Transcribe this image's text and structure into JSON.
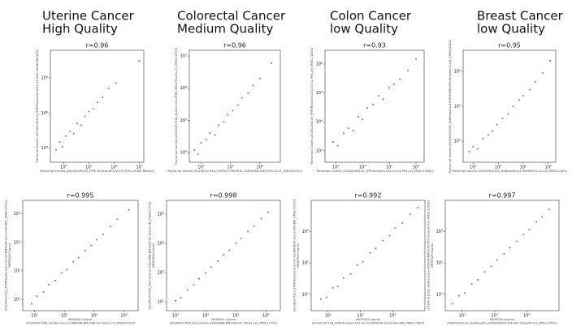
{
  "headers": [
    {
      "line1": "Uterine Cancer",
      "line2": "High Quality"
    },
    {
      "line1": "Colorectal Cancer",
      "line2": "Medium Quality"
    },
    {
      "line1": "Colon Cancer",
      "line2": "low Quality"
    },
    {
      "line1": "Breast Cancer",
      "line2": "low Quality"
    }
  ],
  "chart_data": [
    {
      "type": "scatter",
      "title": "r=0.96",
      "log_scale": true,
      "color": "#1f77b4",
      "x_label": "Transcript Counts (20240208133_FFPE-HuUterusCa-V2-S1-PH1-LH-BM_Beta10)",
      "y_label": "Transcript Counts (20240208133_FFPEHuUterusCa-V2-S1-PH1-LH-BM_Beta10)",
      "xlim": [
        3000,
        15000000
      ],
      "ylim": [
        4000,
        6000000
      ],
      "xticks": [
        {
          "value": 10000,
          "label": "10⁴"
        },
        {
          "value": 100000,
          "label": "10⁵"
        },
        {
          "value": 1000000,
          "label": "10⁶"
        },
        {
          "value": 10000000,
          "label": "10⁷"
        }
      ],
      "yticks": [
        {
          "value": 10000,
          "label": "10⁴"
        },
        {
          "value": 100000,
          "label": "10⁵"
        },
        {
          "value": 1000000,
          "label": "10⁶"
        }
      ],
      "x": [
        5000,
        7000,
        9000,
        12000,
        18000,
        25000,
        35000,
        50000,
        70000,
        100000,
        150000,
        220000,
        350000,
        600000,
        1200000,
        10000000
      ],
      "y": [
        9000,
        15000,
        11000,
        22000,
        30000,
        26000,
        50000,
        45000,
        80000,
        110000,
        130000,
        200000,
        280000,
        500000,
        700000,
        3000000
      ]
    },
    {
      "type": "scatter",
      "title": "r=0.96",
      "log_scale": true,
      "color": "#1f77b4",
      "x_label": "Transcript Counts (20240207414_HuCRC-FFPE-MG2-1282958B-MG2-PH1-V1-LT_VMSC00701)",
      "y_label": "Transcript Counts (20240207414_HuColonCa-FFPE-MG2-PH1-V1-LT_VMSC00701)",
      "xlim": [
        4000,
        5000000
      ],
      "ylim": [
        5000,
        15000000
      ],
      "xticks": [
        {
          "value": 10000,
          "label": "10⁴"
        },
        {
          "value": 100000,
          "label": "10⁵"
        },
        {
          "value": 1000000,
          "label": "10⁶"
        }
      ],
      "yticks": [
        {
          "value": 10000,
          "label": "10⁴"
        },
        {
          "value": 100000,
          "label": "10⁵"
        },
        {
          "value": 1000000,
          "label": "10⁶"
        },
        {
          "value": 10000000,
          "label": "10⁷"
        }
      ],
      "x": [
        6000,
        8000,
        10000,
        15000,
        20000,
        30000,
        40000,
        60000,
        80000,
        120000,
        180000,
        250000,
        400000,
        600000,
        1000000,
        2500000
      ],
      "y": [
        12000,
        9000,
        20000,
        25000,
        40000,
        35000,
        70000,
        90000,
        150000,
        200000,
        300000,
        500000,
        700000,
        1200000,
        2000000,
        6000000
      ]
    },
    {
      "type": "scatter",
      "title": "r=0.93",
      "log_scale": true,
      "color": "#1f77b4",
      "x_label": "Transcript Counts (20240208130_FFPEHuColon-L02-V1-S1-PH1-LH_VMSC11802)",
      "y_label": "Transcript Counts (20240208130_FFPEHuColon-L02-V1-S1-PH1-LH_VMSC11802)",
      "xlim": [
        400,
        2000000
      ],
      "ylim": [
        400,
        3000000
      ],
      "xticks": [
        {
          "value": 1000,
          "label": "10³"
        },
        {
          "value": 10000,
          "label": "10⁴"
        },
        {
          "value": 100000,
          "label": "10⁵"
        },
        {
          "value": 1000000,
          "label": "10⁶"
        }
      ],
      "yticks": [
        {
          "value": 1000,
          "label": "10³"
        },
        {
          "value": 10000,
          "label": "10⁴"
        },
        {
          "value": 100000,
          "label": "10⁵"
        },
        {
          "value": 1000000,
          "label": "10⁶"
        }
      ],
      "x": [
        800,
        1200,
        2000,
        3000,
        4500,
        7000,
        10000,
        15000,
        25000,
        40000,
        60000,
        100000,
        150000,
        250000,
        500000,
        1000000
      ],
      "y": [
        2000,
        1500,
        4000,
        6000,
        5000,
        15000,
        12000,
        30000,
        40000,
        80000,
        60000,
        150000,
        200000,
        300000,
        600000,
        1500000
      ]
    },
    {
      "type": "scatter",
      "title": "r=0.95",
      "log_scale": true,
      "color": "#1f77b4",
      "x_label": "Transcript Counts (20240320130_HuBreastCa-476998-PH1-V1-LH_VMSC12402)",
      "y_label": "Transcript Counts (20240320130_HuBreastCa-476998-BM1436-Aligned-V1-LH_VMSC12402)",
      "xlim": [
        400,
        2000000
      ],
      "ylim": [
        2500,
        4000000
      ],
      "xticks": [
        {
          "value": 1000,
          "label": "10³"
        },
        {
          "value": 10000,
          "label": "10⁴"
        },
        {
          "value": 100000,
          "label": "10⁵"
        },
        {
          "value": 1000000,
          "label": "10⁶"
        }
      ],
      "yticks": [
        {
          "value": 10000,
          "label": "10⁴"
        },
        {
          "value": 100000,
          "label": "10⁵"
        },
        {
          "value": 1000000,
          "label": "10⁶"
        }
      ],
      "x": [
        700,
        1000,
        1500,
        2500,
        4000,
        6000,
        9000,
        15000,
        25000,
        40000,
        70000,
        100000,
        180000,
        300000,
        600000,
        1200000
      ],
      "y": [
        5000,
        7000,
        6000,
        12000,
        15000,
        20000,
        30000,
        45000,
        60000,
        100000,
        150000,
        200000,
        300000,
        500000,
        900000,
        2000000
      ]
    },
    {
      "type": "scatter",
      "title": "r=0.995",
      "log_scale": true,
      "color": "#1f77b4",
      "x_label": "MERFISH Counts",
      "x_sublabel": "(20240207159_HuUterusCa-1296609B-BM1436-V2-Slice2-LH_VMSC07201)",
      "y_label": "MERFISH Counts",
      "y_sublabel": "(20240207112_FFPEHuUterusCa-V2-S1-BM1436-2xConvPu-BW_VMSC07201)",
      "xlim": [
        4,
        30000
      ],
      "ylim": [
        4,
        30000
      ],
      "xticks": [
        {
          "value": 10,
          "label": "10¹"
        },
        {
          "value": 100,
          "label": "10²"
        },
        {
          "value": 1000,
          "label": "10³"
        },
        {
          "value": 10000,
          "label": "10⁴"
        }
      ],
      "yticks": [
        {
          "value": 10,
          "label": "10¹"
        },
        {
          "value": 100,
          "label": "10²"
        },
        {
          "value": 1000,
          "label": "10³"
        },
        {
          "value": 10000,
          "label": "10⁴"
        }
      ],
      "x": [
        8,
        12,
        20,
        30,
        50,
        80,
        120,
        200,
        300,
        500,
        800,
        1200,
        2000,
        3500,
        6000,
        15000
      ],
      "y": [
        7,
        13,
        18,
        33,
        45,
        85,
        110,
        210,
        290,
        520,
        780,
        1250,
        1900,
        3600,
        6500,
        14000
      ]
    },
    {
      "type": "scatter",
      "title": "r=0.998",
      "log_scale": true,
      "color": "#1f77b4",
      "x_label": "MERFISH Counts",
      "x_sublabel": "(20240207405_HuColonCa-1282958B-BM1436-V2-Slice1-LH_VMSC11702)",
      "y_label": "MERFISH Counts",
      "y_sublabel": "(20240207557_HuColonCa-1282958B-BM1436-V2-Slice2-LH_VMSC11702)",
      "xlim": [
        5,
        30000
      ],
      "ylim": [
        5,
        30000
      ],
      "xticks": [
        {
          "value": 10,
          "label": "10¹"
        },
        {
          "value": 100,
          "label": "10²"
        },
        {
          "value": 1000,
          "label": "10³"
        },
        {
          "value": 10000,
          "label": "10⁴"
        }
      ],
      "yticks": [
        {
          "value": 10,
          "label": "10¹"
        },
        {
          "value": 100,
          "label": "10²"
        },
        {
          "value": 1000,
          "label": "10³"
        },
        {
          "value": 10000,
          "label": "10⁴"
        }
      ],
      "x": [
        10,
        15,
        25,
        40,
        60,
        100,
        150,
        250,
        400,
        600,
        1000,
        1500,
        2500,
        4000,
        7000,
        12000
      ],
      "y": [
        11,
        14,
        26,
        38,
        62,
        98,
        155,
        245,
        410,
        590,
        1020,
        1480,
        2550,
        3900,
        7100,
        11800
      ]
    },
    {
      "type": "scatter",
      "title": "r=0.992",
      "log_scale": true,
      "color": "#1f77b4",
      "x_label": "MERFISH Counts",
      "x_sublabel": "(20240207118_FFPEHuColon-L01-V2-S2-BM1436-2xConvPu-BW_VMSC11802)",
      "y_label": "MERFISH Counts",
      "y_sublabel": "(20240207111_FFPEHuColon-L01-V2-S2-BM1436-2xConvPu-BW_VMSC00701)",
      "xlim": [
        3,
        10000
      ],
      "ylim": [
        3,
        10000
      ],
      "xticks": [
        {
          "value": 10,
          "label": "10¹"
        },
        {
          "value": 100,
          "label": "10²"
        },
        {
          "value": 1000,
          "label": "10³"
        }
      ],
      "yticks": [
        {
          "value": 10,
          "label": "10¹"
        },
        {
          "value": 100,
          "label": "10²"
        },
        {
          "value": 1000,
          "label": "10³"
        }
      ],
      "x": [
        6,
        9,
        14,
        20,
        30,
        50,
        80,
        120,
        200,
        300,
        500,
        800,
        1200,
        2000,
        3500,
        6000
      ],
      "y": [
        7,
        8,
        16,
        18,
        33,
        45,
        85,
        110,
        210,
        290,
        520,
        750,
        1300,
        1900,
        3600,
        5800
      ]
    },
    {
      "type": "scatter",
      "title": "r=0.997",
      "log_scale": true,
      "color": "#1f77b4",
      "x_label": "MERFISH Counts",
      "x_sublabel": "(20240320130_HuBreastCa-476998-BM1336-V65-20perEF-LH_VMSC12502)",
      "y_label": "MERFISH Counts",
      "y_sublabel": "(20240321108_HuBreastCa-476998-BM1336-V65-20perEF-LH_VMSC12502)",
      "xlim": [
        3,
        10000
      ],
      "ylim": [
        3,
        10000
      ],
      "xticks": [
        {
          "value": 10,
          "label": "10¹"
        },
        {
          "value": 100,
          "label": "10²"
        },
        {
          "value": 1000,
          "label": "10³"
        }
      ],
      "yticks": [
        {
          "value": 10,
          "label": "10¹"
        },
        {
          "value": 100,
          "label": "10²"
        },
        {
          "value": 1000,
          "label": "10³"
        }
      ],
      "x": [
        5,
        8,
        12,
        20,
        30,
        50,
        80,
        120,
        200,
        300,
        500,
        800,
        1200,
        2000,
        3000,
        5000
      ],
      "y": [
        5,
        9,
        11,
        21,
        29,
        52,
        78,
        125,
        195,
        310,
        490,
        820,
        1180,
        2050,
        2950,
        5100
      ]
    }
  ]
}
